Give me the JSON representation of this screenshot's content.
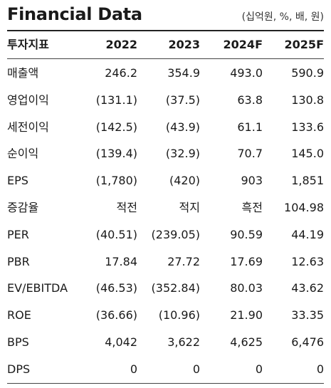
{
  "title": "Financial Data",
  "unit": "(십억원, %, 배, 원)",
  "columns": [
    "투자지표",
    "2022",
    "2023",
    "2024F",
    "2025F"
  ],
  "rows": [
    {
      "label": "매출액",
      "values": [
        "246.2",
        "354.9",
        "493.0",
        "590.9"
      ]
    },
    {
      "label": "영업이익",
      "values": [
        "(131.1)",
        "(37.5)",
        "63.8",
        "130.8"
      ]
    },
    {
      "label": "세전이익",
      "values": [
        "(142.5)",
        "(43.9)",
        "61.1",
        "133.6"
      ]
    },
    {
      "label": "순이익",
      "values": [
        "(139.4)",
        "(32.9)",
        "70.7",
        "145.0"
      ]
    },
    {
      "label": "EPS",
      "values": [
        "(1,780)",
        "(420)",
        "903",
        "1,851"
      ]
    },
    {
      "label": "증감율",
      "values": [
        "적전",
        "적지",
        "흑전",
        "104.98"
      ]
    },
    {
      "label": "PER",
      "values": [
        "(40.51)",
        "(239.05)",
        "90.59",
        "44.19"
      ]
    },
    {
      "label": "PBR",
      "values": [
        "17.84",
        "27.72",
        "17.69",
        "12.63"
      ]
    },
    {
      "label": "EV/EBITDA",
      "values": [
        "(46.53)",
        "(352.84)",
        "80.03",
        "43.62"
      ]
    },
    {
      "label": "ROE",
      "values": [
        "(36.66)",
        "(10.96)",
        "21.90",
        "33.35"
      ]
    },
    {
      "label": "BPS",
      "values": [
        "4,042",
        "3,622",
        "4,625",
        "6,476"
      ]
    },
    {
      "label": "DPS",
      "values": [
        "0",
        "0",
        "0",
        "0"
      ]
    }
  ]
}
